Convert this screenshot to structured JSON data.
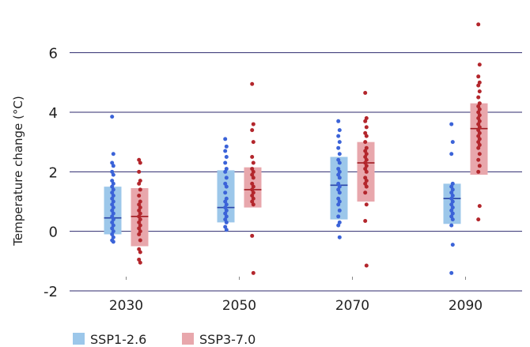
{
  "chart_data": {
    "type": "box-strip",
    "title": "",
    "xlabel": "",
    "ylabel": "Temperature change (°C)",
    "ylim": [
      -2,
      7
    ],
    "yticks": [
      -2,
      0,
      2,
      4,
      6
    ],
    "grid": true,
    "legend_position": "bottom-left",
    "categories": [
      "2030",
      "2050",
      "2070",
      "2090"
    ],
    "series": [
      {
        "name": "SSP1-2.6",
        "box_color": "#9cc7ea",
        "point_color": "#3b63d8",
        "median_color": "#2a45a8",
        "boxes": [
          {
            "q1": -0.1,
            "median": 0.45,
            "q3": 1.5
          },
          {
            "q1": 0.3,
            "median": 0.8,
            "q3": 2.05
          },
          {
            "q1": 0.4,
            "median": 1.55,
            "q3": 2.5
          },
          {
            "q1": 0.25,
            "median": 1.1,
            "q3": 1.6
          }
        ],
        "points": [
          [
            3.85,
            2.6,
            2.3,
            2.2,
            2.0,
            1.9,
            1.7,
            1.6,
            1.5,
            1.4,
            1.3,
            1.2,
            1.1,
            1.0,
            0.9,
            0.8,
            0.7,
            0.6,
            0.5,
            0.4,
            0.3,
            0.2,
            0.1,
            0.0,
            -0.1,
            -0.2,
            -0.3,
            -0.35
          ],
          [
            3.1,
            2.85,
            2.7,
            2.5,
            2.3,
            2.1,
            2.0,
            1.8,
            1.6,
            1.5,
            1.3,
            1.1,
            1.0,
            0.9,
            0.8,
            0.7,
            0.6,
            0.5,
            0.4,
            0.3,
            0.15,
            0.05
          ],
          [
            3.7,
            3.4,
            3.2,
            3.0,
            2.8,
            2.6,
            2.4,
            2.3,
            2.1,
            2.0,
            1.9,
            1.8,
            1.6,
            1.5,
            1.4,
            1.3,
            1.1,
            1.0,
            0.9,
            0.7,
            0.5,
            0.3,
            0.2,
            -0.2
          ],
          [
            3.6,
            3.0,
            2.6,
            1.6,
            1.5,
            1.4,
            1.3,
            1.2,
            1.1,
            1.0,
            0.9,
            0.8,
            0.7,
            0.6,
            0.5,
            0.4,
            0.2,
            -0.45,
            -1.4
          ]
        ]
      },
      {
        "name": "SSP3-7.0",
        "box_color": "#e8a7ac",
        "point_color": "#b3262c",
        "median_color": "#a01c22",
        "boxes": [
          {
            "q1": -0.5,
            "median": 0.5,
            "q3": 1.45
          },
          {
            "q1": 0.8,
            "median": 1.4,
            "q3": 2.15
          },
          {
            "q1": 1.0,
            "median": 2.3,
            "q3": 3.0
          },
          {
            "q1": 1.9,
            "median": 3.45,
            "q3": 4.3
          }
        ],
        "points": [
          [
            2.4,
            2.3,
            2.0,
            1.7,
            1.6,
            1.4,
            1.2,
            1.0,
            0.9,
            0.8,
            0.7,
            0.6,
            0.5,
            0.4,
            0.3,
            0.2,
            0.1,
            0.0,
            -0.1,
            -0.3,
            -0.6,
            -0.7,
            -0.95,
            -1.05
          ],
          [
            4.95,
            3.6,
            3.4,
            3.0,
            2.5,
            2.3,
            2.1,
            2.0,
            1.9,
            1.8,
            1.6,
            1.5,
            1.4,
            1.3,
            1.2,
            1.1,
            1.0,
            0.9,
            -0.15,
            -1.4
          ],
          [
            4.65,
            3.8,
            3.7,
            3.5,
            3.3,
            3.2,
            3.0,
            2.8,
            2.7,
            2.6,
            2.5,
            2.4,
            2.3,
            2.2,
            2.1,
            2.0,
            1.8,
            1.7,
            1.6,
            1.5,
            1.3,
            0.9,
            0.35,
            -1.15
          ],
          [
            6.95,
            5.6,
            5.2,
            5.0,
            4.9,
            4.7,
            4.5,
            4.3,
            4.2,
            4.1,
            4.0,
            3.9,
            3.8,
            3.7,
            3.6,
            3.5,
            3.4,
            3.3,
            3.2,
            3.1,
            3.0,
            2.9,
            2.8,
            2.6,
            2.4,
            2.2,
            2.0,
            0.85,
            0.4
          ]
        ]
      }
    ]
  }
}
